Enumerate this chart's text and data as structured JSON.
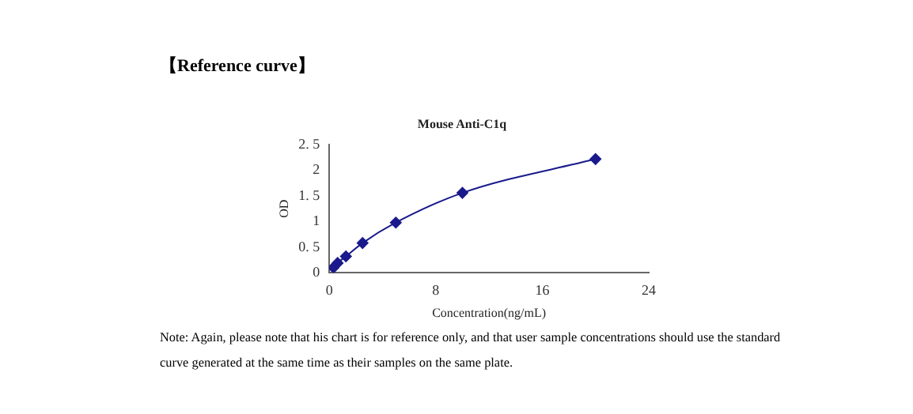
{
  "chart_data": {
    "type": "line",
    "title": "Mouse Anti-C1q",
    "xlabel": "Concentration(ng/mL)",
    "ylabel": "OD",
    "annotations": [
      "【Reference curve】",
      "Note: Again, please note that his chart is for reference only, and that user sample concentrations should use the standard curve generated at the same time as their samples on the same plate."
    ],
    "x": [
      0.3125,
      0.625,
      1.25,
      2.5,
      5,
      10,
      20
    ],
    "series": [
      {
        "color": "#1a1a8c",
        "values": [
          0.1,
          0.19,
          0.32,
          0.58,
          0.98,
          1.56,
          2.22
        ]
      }
    ],
    "xlim": [
      0,
      24
    ],
    "xticks": [
      0,
      8,
      16,
      24
    ],
    "ylim": [
      0,
      2.5
    ],
    "yticks": [
      {
        "value": 0,
        "label": "0"
      },
      {
        "value": 0.5,
        "label": "0. 5"
      },
      {
        "value": 1,
        "label": "1"
      },
      {
        "value": 1.5,
        "label": "1. 5"
      },
      {
        "value": 2,
        "label": "2"
      },
      {
        "value": 2.5,
        "label": "2. 5"
      }
    ],
    "grid": false,
    "legend": false,
    "marker": "diamond",
    "line_style": "solid"
  }
}
